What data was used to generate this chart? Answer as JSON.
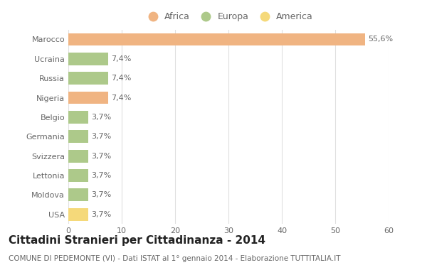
{
  "categories": [
    "Marocco",
    "Ucraina",
    "Russia",
    "Nigeria",
    "Belgio",
    "Germania",
    "Svizzera",
    "Lettonia",
    "Moldova",
    "USA"
  ],
  "values": [
    55.6,
    7.4,
    7.4,
    7.4,
    3.7,
    3.7,
    3.7,
    3.7,
    3.7,
    3.7
  ],
  "labels": [
    "55,6%",
    "7,4%",
    "7,4%",
    "7,4%",
    "3,7%",
    "3,7%",
    "3,7%",
    "3,7%",
    "3,7%",
    "3,7%"
  ],
  "colors": [
    "#f0b482",
    "#adc98a",
    "#adc98a",
    "#f0b482",
    "#adc98a",
    "#adc98a",
    "#adc98a",
    "#adc98a",
    "#adc98a",
    "#f5d97a"
  ],
  "legend": [
    {
      "label": "Africa",
      "color": "#f0b482"
    },
    {
      "label": "Europa",
      "color": "#adc98a"
    },
    {
      "label": "America",
      "color": "#f5d97a"
    }
  ],
  "xlim": [
    0,
    60
  ],
  "xticks": [
    0,
    10,
    20,
    30,
    40,
    50,
    60
  ],
  "title": "Cittadini Stranieri per Cittadinanza - 2014",
  "subtitle": "COMUNE DI PEDEMONTE (VI) - Dati ISTAT al 1° gennaio 2014 - Elaborazione TUTTITALIA.IT",
  "background_color": "#ffffff",
  "grid_color": "#e0e0e0",
  "bar_height": 0.65,
  "title_fontsize": 11,
  "subtitle_fontsize": 7.5,
  "label_fontsize": 8,
  "tick_fontsize": 8,
  "legend_fontsize": 9
}
